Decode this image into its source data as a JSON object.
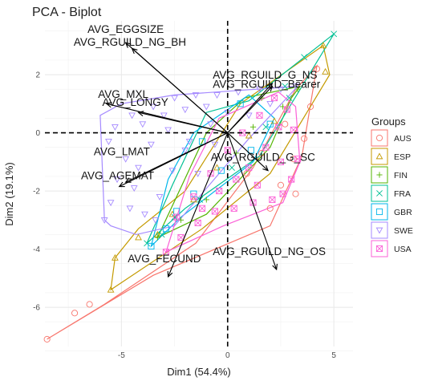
{
  "chart_data": {
    "type": "scatter",
    "title": "PCA - Biplot",
    "xlabel": "Dim1 (54.4%)",
    "ylabel": "Dim2 (19.1%)",
    "xlim": [
      -8.6,
      5.9
    ],
    "ylim": [
      -7.35,
      3.85
    ],
    "xticks": [
      -5,
      0,
      5
    ],
    "yticks": [
      -6,
      -4,
      -2,
      0,
      2
    ],
    "grid": true,
    "legend_position": "right",
    "legend_title": "Groups",
    "groups": [
      {
        "name": "AUS",
        "color": "#F8766D",
        "symbol": "circle",
        "hull": [
          [
            -8.5,
            -7.1
          ],
          [
            -5.8,
            -5.9
          ],
          [
            -1.5,
            -3.8
          ],
          [
            1.2,
            -1.2
          ],
          [
            3.2,
            1.5
          ],
          [
            4.2,
            2.3
          ],
          [
            3.5,
            -0.8
          ],
          [
            2.0,
            -3.2
          ],
          [
            -3.5,
            -4.9
          ]
        ],
        "points": [
          [
            -8.5,
            -7.1
          ],
          [
            -7.2,
            -6.2
          ],
          [
            -6.5,
            -5.9
          ],
          [
            2.0,
            -2.6
          ],
          [
            2.5,
            -1.8
          ],
          [
            3.1,
            -0.9
          ],
          [
            3.6,
            -0.2
          ],
          [
            3.9,
            0.9
          ],
          [
            4.2,
            2.2
          ],
          [
            2.7,
            0.3
          ],
          [
            1.6,
            -0.7
          ],
          [
            0.9,
            -1.4
          ],
          [
            3.2,
            -2.1
          ]
        ]
      },
      {
        "name": "ESP",
        "color": "#C49A00",
        "symbol": "triangle",
        "hull": [
          [
            -5.5,
            -5.4
          ],
          [
            -5.3,
            -4.3
          ],
          [
            -4.2,
            -3.3
          ],
          [
            -2.0,
            -2.0
          ],
          [
            0.6,
            1.0
          ],
          [
            4.5,
            3.0
          ],
          [
            4.8,
            2.0
          ],
          [
            2.0,
            -1.4
          ],
          [
            -1.2,
            -3.3
          ]
        ],
        "points": [
          [
            -5.5,
            -5.4
          ],
          [
            -5.3,
            -4.3
          ],
          [
            -4.2,
            -3.6
          ],
          [
            -3.3,
            -3.5
          ],
          [
            -2.6,
            -2.8
          ],
          [
            -1.6,
            -2.3
          ],
          [
            -0.5,
            -1.2
          ],
          [
            1.0,
            -0.1
          ],
          [
            4.5,
            3.0
          ],
          [
            4.6,
            2.1
          ],
          [
            2.2,
            0.4
          ]
        ]
      },
      {
        "name": "FIN",
        "color": "#53B400",
        "symbol": "plus",
        "hull": [
          [
            -3.3,
            -3.6
          ],
          [
            -1.0,
            -2.8
          ],
          [
            2.0,
            -0.5
          ],
          [
            3.0,
            1.2
          ],
          [
            3.4,
            1.6
          ],
          [
            0.8,
            1.2
          ],
          [
            -1.0,
            0.0
          ]
        ],
        "points": [
          [
            -3.3,
            -3.6
          ],
          [
            -2.2,
            -3.0
          ],
          [
            -1.0,
            -2.3
          ],
          [
            0.4,
            -0.7
          ],
          [
            1.2,
            0.2
          ],
          [
            2.6,
            0.9
          ],
          [
            3.3,
            1.5
          ],
          [
            1.6,
            1.2
          ]
        ]
      },
      {
        "name": "FRA",
        "color": "#00C094",
        "symbol": "cross",
        "hull": [
          [
            -3.8,
            -3.8
          ],
          [
            -2.0,
            -2.6
          ],
          [
            1.5,
            -0.8
          ],
          [
            5.0,
            3.4
          ],
          [
            1.0,
            1.1
          ],
          [
            -1.0,
            0.7
          ],
          [
            -2.6,
            -1.8
          ]
        ],
        "points": [
          [
            -3.8,
            -3.8
          ],
          [
            -3.1,
            -3.5
          ],
          [
            -2.5,
            -2.9
          ],
          [
            -1.3,
            -2.3
          ],
          [
            0.2,
            -1.2
          ],
          [
            1.8,
            0.2
          ],
          [
            2.7,
            1.6
          ],
          [
            3.6,
            2.6
          ],
          [
            5.0,
            3.4
          ],
          [
            2.9,
            1.2
          ]
        ]
      },
      {
        "name": "GBR",
        "color": "#00B6EB",
        "symbol": "square",
        "hull": [
          [
            -3.6,
            -3.9
          ],
          [
            -2.2,
            -2.9
          ],
          [
            1.2,
            -1.0
          ],
          [
            2.2,
            0.5
          ],
          [
            1.0,
            1.3
          ],
          [
            -1.6,
            0.0
          ],
          [
            -2.8,
            -1.6
          ]
        ],
        "points": [
          [
            -3.6,
            -3.9
          ],
          [
            -2.9,
            -3.3
          ],
          [
            -2.4,
            -2.7
          ],
          [
            -1.6,
            -2.1
          ],
          [
            -0.3,
            -1.3
          ],
          [
            1.1,
            -0.6
          ],
          [
            2.0,
            0.3
          ],
          [
            0.6,
            1.0
          ],
          [
            -1.2,
            -0.3
          ]
        ]
      },
      {
        "name": "SWE",
        "color": "#A58AFF",
        "symbol": "triangle-down",
        "hull": [
          [
            -5.8,
            -3.0
          ],
          [
            -6.0,
            0.6
          ],
          [
            -5.0,
            1.0
          ],
          [
            -2.5,
            1.3
          ],
          [
            3.3,
            1.6
          ],
          [
            1.0,
            -0.2
          ],
          [
            -2.5,
            -3.2
          ],
          [
            -4.3,
            -3.5
          ],
          [
            -5.5,
            -3.2
          ]
        ],
        "points": [
          [
            -5.8,
            -3.0
          ],
          [
            -5.5,
            -2.4
          ],
          [
            -5.2,
            -1.6
          ],
          [
            -4.8,
            -0.9
          ],
          [
            -4.4,
            -1.9
          ],
          [
            -3.9,
            -2.8
          ],
          [
            -3.2,
            -2.2
          ],
          [
            -2.6,
            -1.3
          ],
          [
            -2.0,
            -0.6
          ],
          [
            -5.6,
            -0.3
          ],
          [
            -5.3,
            0.2
          ],
          [
            -4.5,
            0.6
          ],
          [
            -3.5,
            0.9
          ],
          [
            -2.5,
            1.2
          ],
          [
            -1.5,
            1.3
          ],
          [
            -0.5,
            1.3
          ],
          [
            0.5,
            1.4
          ],
          [
            1.5,
            1.5
          ],
          [
            2.5,
            1.5
          ],
          [
            3.2,
            1.6
          ],
          [
            -4.0,
            0.3
          ],
          [
            -3.0,
            0.6
          ],
          [
            -2.0,
            0.8
          ],
          [
            -1.0,
            0.9
          ],
          [
            0.0,
            0.7
          ],
          [
            -3.6,
            -0.4
          ],
          [
            -2.8,
            0.1
          ],
          [
            -1.8,
            -0.3
          ],
          [
            -0.8,
            0.3
          ],
          [
            -4.2,
            -1.2
          ],
          [
            -3.4,
            -3.0
          ],
          [
            -4.6,
            -2.6
          ],
          [
            -1.4,
            -1.4
          ],
          [
            -0.6,
            -0.4
          ],
          [
            1.0,
            0.6
          ],
          [
            2.0,
            1.0
          ]
        ]
      },
      {
        "name": "USA",
        "color": "#FB61D7",
        "symbol": "square-cross",
        "hull": [
          [
            -2.9,
            -4.1
          ],
          [
            -0.2,
            -3.2
          ],
          [
            2.6,
            -2.4
          ],
          [
            3.4,
            -1.0
          ],
          [
            3.2,
            0.9
          ],
          [
            2.4,
            1.4
          ],
          [
            -0.4,
            0.5
          ],
          [
            -1.8,
            -1.5
          ]
        ],
        "points": [
          [
            -2.9,
            -4.1
          ],
          [
            -2.2,
            -3.6
          ],
          [
            -1.4,
            -3.1
          ],
          [
            -0.6,
            -2.7
          ],
          [
            0.3,
            -2.6
          ],
          [
            1.2,
            -2.4
          ],
          [
            2.1,
            -2.3
          ],
          [
            2.6,
            -2.1
          ],
          [
            3.0,
            -1.6
          ],
          [
            3.3,
            -0.9
          ],
          [
            3.1,
            0.1
          ],
          [
            2.8,
            0.8
          ],
          [
            2.2,
            1.2
          ],
          [
            1.5,
            0.6
          ],
          [
            0.7,
            0.0
          ],
          [
            0.0,
            -0.6
          ],
          [
            -0.8,
            -1.4
          ],
          [
            -1.6,
            -2.2
          ],
          [
            -2.4,
            -2.9
          ],
          [
            1.0,
            -1.2
          ],
          [
            1.8,
            -0.5
          ],
          [
            2.5,
            -1.0
          ],
          [
            0.4,
            -1.6
          ],
          [
            -0.4,
            -2.0
          ],
          [
            1.4,
            -1.8
          ],
          [
            2.4,
            0.2
          ],
          [
            -1.2,
            -2.6
          ]
        ]
      }
    ],
    "variables": [
      {
        "name": "AVG_EGGSIZE",
        "x": -4.8,
        "y": 3.1
      },
      {
        "name": "AVG_RGUILD_NG_BH",
        "x": -4.5,
        "y": 2.9
      },
      {
        "name": "AVG_MXL",
        "x": -5.7,
        "y": 1.0
      },
      {
        "name": "AVG_LONGY",
        "x": -4.2,
        "y": 0.7
      },
      {
        "name": "AVG_RGUILD_G_NS",
        "x": 2.1,
        "y": 1.6
      },
      {
        "name": "AVG_RGUILD_Bearer",
        "x": 2.1,
        "y": 1.7
      },
      {
        "name": "AVG_LMAT",
        "x": -4.8,
        "y": -1.7
      },
      {
        "name": "AVG_AGEMAT",
        "x": -5.1,
        "y": -1.85
      },
      {
        "name": "AVG_RGUILD_G_SC",
        "x": 1.9,
        "y": -1.3
      },
      {
        "name": "AVG_FECUND",
        "x": -2.8,
        "y": -4.95
      },
      {
        "name": "AVG_RGUILD_NG_OS",
        "x": 2.3,
        "y": -4.7
      }
    ]
  }
}
